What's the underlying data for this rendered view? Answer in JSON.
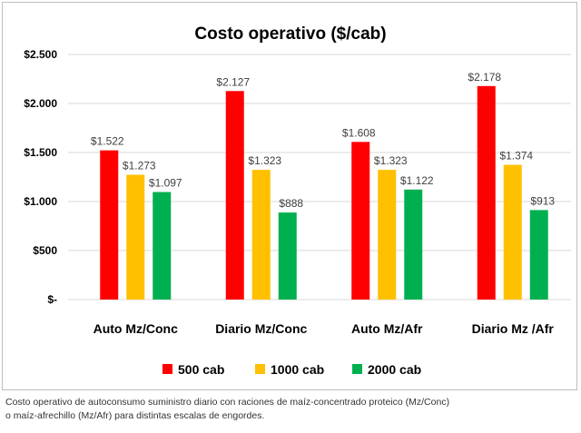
{
  "colors": {
    "500 cab": "#ff0000",
    "1000 cab": "#ffc000",
    "2000 cab": "#00b050",
    "grid": "#d9d9d9",
    "text": "#000000"
  },
  "caption": {
    "line1": "Costo operativo de autoconsumo suministro diario con raciones de maíz-concentrado proteico (Mz/Conc)",
    "line2": "o maíz-afrechillo (Mz/Afr) para distintas escalas de engordes."
  },
  "chart_data": {
    "type": "bar",
    "title": "Costo operativo ($/cab)",
    "categories": [
      "Auto Mz/Conc",
      "Diario Mz/Conc",
      "Auto Mz/Afr",
      "Diario Mz /Afr"
    ],
    "series": [
      {
        "name": "500 cab",
        "values": [
          1522,
          2127,
          1608,
          2178
        ],
        "labels": [
          "$1.522",
          "$2.127",
          "$1.608",
          "$2.178"
        ]
      },
      {
        "name": "1000 cab",
        "values": [
          1273,
          1323,
          1323,
          1374
        ],
        "labels": [
          "$1.273",
          "$1.323",
          "$1.323",
          "$1.374"
        ]
      },
      {
        "name": "2000 cab",
        "values": [
          1097,
          888,
          1122,
          913
        ],
        "labels": [
          "$1.097",
          "$888",
          "$1.122",
          "$913"
        ]
      }
    ],
    "yticks": [
      0,
      500,
      1000,
      1500,
      2000,
      2500
    ],
    "ytick_labels": [
      "$-",
      "$500",
      "$1.000",
      "$1.500",
      "$2.000",
      "$2.500"
    ],
    "ylim": [
      0,
      2500
    ],
    "grid": true,
    "legend_position": "bottom"
  }
}
